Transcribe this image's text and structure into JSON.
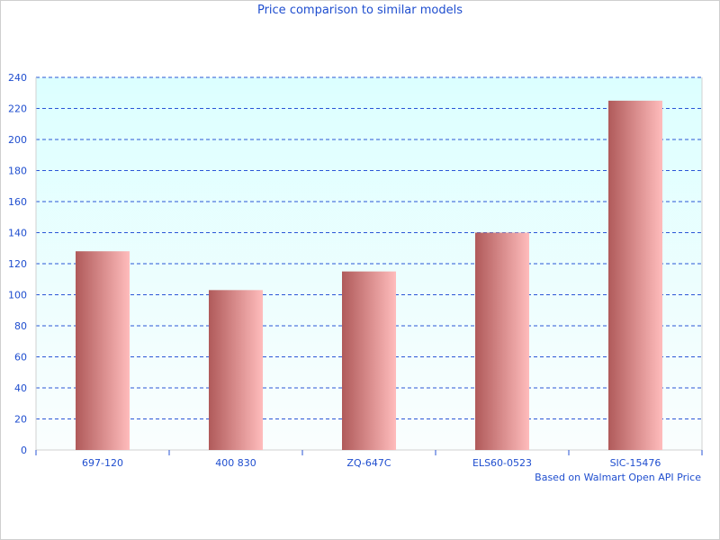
{
  "chart_data": {
    "type": "bar",
    "title": "Price comparison to similar models",
    "categories": [
      "697-120",
      "400 830",
      "ZQ-647C",
      "ELS60-0523",
      "SIC-15476"
    ],
    "values": [
      128,
      103,
      115,
      140,
      225
    ],
    "xlabel": "",
    "ylabel": "",
    "ylim": [
      0,
      240
    ],
    "yticks": [
      0,
      20,
      40,
      60,
      80,
      100,
      120,
      140,
      160,
      180,
      200,
      220,
      240
    ],
    "grid": true,
    "note": "Based on Walmart Open API Price",
    "colors": {
      "bar_dark": "#b05a5a",
      "bar_light": "#ffbcbc",
      "grid": "#2a56d6",
      "text": "#1f4ecf",
      "plot_bg_top": "#dcffff",
      "plot_bg_bottom": "#fafefe"
    }
  }
}
